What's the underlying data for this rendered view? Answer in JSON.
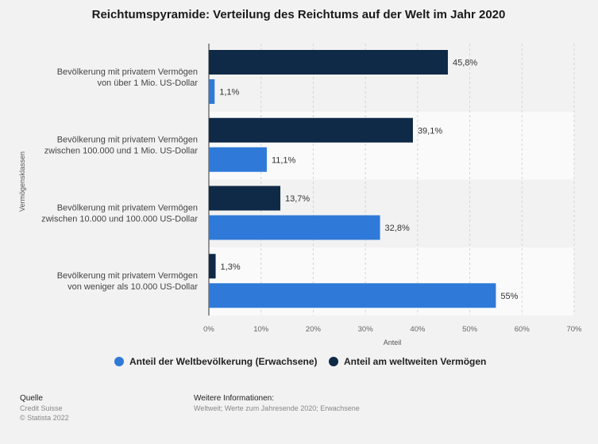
{
  "chart_data": {
    "type": "bar",
    "orientation": "horizontal",
    "title": "Reichtumspyramide: Verteilung des Reichtums auf der Welt im Jahr 2020",
    "xlabel": "Anteil",
    "ylabel": "Vermögensklassen",
    "xlim": [
      0,
      70
    ],
    "x_ticks": [
      "0%",
      "10%",
      "20%",
      "30%",
      "40%",
      "50%",
      "60%",
      "70%"
    ],
    "categories": [
      [
        "Bevölkerung mit privatem Vermögen",
        "von über 1 Mio. US-Dollar"
      ],
      [
        "Bevölkerung mit privatem Vermögen",
        "zwischen 100.000 und 1 Mio. US-Dollar"
      ],
      [
        "Bevölkerung mit privatem Vermögen",
        "zwischen 10.000 und 100.000 US-Dollar"
      ],
      [
        "Bevölkerung mit privatem Vermögen",
        "von weniger als 10.000 US-Dollar"
      ]
    ],
    "series": [
      {
        "name": "Anteil am weltweiten Vermögen",
        "color": "#0f2a47",
        "values": [
          45.8,
          39.1,
          13.7,
          1.3
        ],
        "labels": [
          "45,8%",
          "39,1%",
          "13,7%",
          "1,3%"
        ]
      },
      {
        "name": "Anteil der Weltbevölkerung (Erwachsene)",
        "color": "#2f7ad8",
        "values": [
          1.1,
          11.1,
          32.8,
          55
        ],
        "labels": [
          "1,1%",
          "11,1%",
          "32,8%",
          "55%"
        ]
      }
    ],
    "grid": true,
    "legend_position": "bottom"
  },
  "legend": [
    {
      "label": "Anteil der Weltbevölkerung (Erwachsene)",
      "color": "#2f7ad8"
    },
    {
      "label": "Anteil am weltweiten Vermögen",
      "color": "#0f2a47"
    }
  ],
  "footer": {
    "source_heading": "Quelle",
    "source_line1": "Credit Suisse",
    "source_line2": "© Statista 2022",
    "info_heading": "Weitere Informationen:",
    "info_text": "Weltweit; Werte zum Jahresende 2020; Erwachsene"
  }
}
